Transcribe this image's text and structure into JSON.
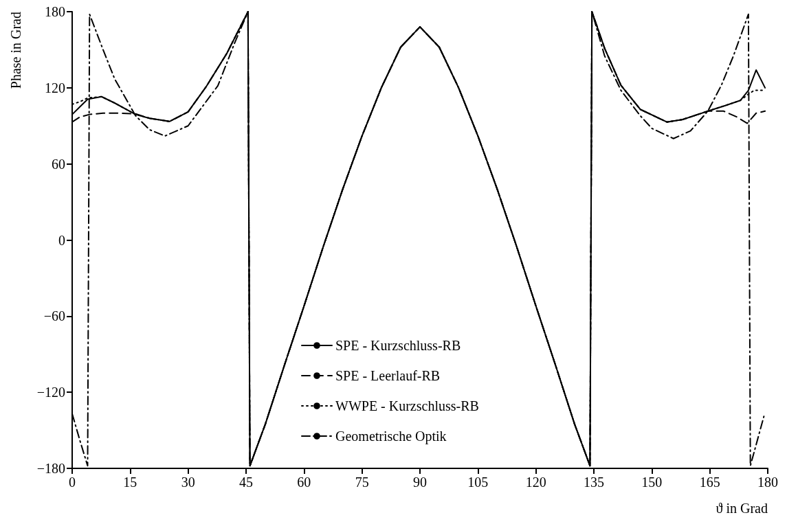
{
  "chart_data": {
    "type": "line",
    "xlabel": "ϑ in Grad",
    "ylabel": "Phase in Grad",
    "xlim": [
      0,
      180
    ],
    "ylim": [
      -180,
      180
    ],
    "xticks": [
      0,
      15,
      30,
      45,
      60,
      75,
      90,
      105,
      120,
      135,
      150,
      165,
      180
    ],
    "yticks": [
      {
        "value": -180,
        "label": "−180"
      },
      {
        "value": -120,
        "label": "−120"
      },
      {
        "value": -60,
        "label": "−60"
      },
      0,
      60,
      120,
      180
    ],
    "grid": false,
    "legend": "bottom",
    "series": [
      {
        "name": "SPE - Kurzschluss-RB",
        "color": "#000000",
        "line_style": "solid",
        "x": [
          0,
          2,
          4,
          7.6,
          11,
          16.4,
          20,
          25.2,
          30,
          34.7,
          40,
          43,
          45.5,
          46,
          50,
          55,
          60,
          65,
          70,
          75,
          80,
          85,
          90,
          95,
          100,
          105,
          110,
          115,
          120,
          125,
          130,
          134,
          134.5,
          137.8,
          142,
          147,
          153.9,
          158,
          164.5,
          169,
          172.9,
          175,
          177,
          179.3
        ],
        "values": [
          99,
          105,
          111,
          113,
          108,
          99,
          96,
          93.5,
          101,
          121,
          147,
          165,
          180,
          -178,
          -145,
          -98,
          -52,
          -5,
          40,
          82,
          120,
          152,
          168,
          152,
          120,
          82,
          40,
          -5,
          -52,
          -98,
          -145,
          -178,
          180,
          151,
          122,
          103,
          93,
          95,
          101.6,
          106,
          110,
          118,
          134,
          120
        ]
      },
      {
        "name": "SPE - Leerlauf-RB",
        "color": "#000000",
        "line_style": "dashed",
        "x": [
          0,
          2,
          4.5,
          8,
          12,
          16.4,
          20,
          25.2,
          30,
          34.7,
          40,
          43,
          45.5,
          46,
          50,
          55,
          60,
          65,
          70,
          75,
          80,
          85,
          90,
          95,
          100,
          105,
          110,
          115,
          120,
          125,
          130,
          134,
          134.5,
          137.8,
          142,
          147,
          153.9,
          158,
          164.5,
          168.6,
          172,
          174.7,
          177,
          179.3
        ],
        "values": [
          93,
          97,
          99,
          100,
          100,
          99.5,
          96,
          93.5,
          101,
          121,
          147,
          165,
          180,
          -178,
          -145,
          -98,
          -52,
          -5,
          40,
          82,
          120,
          152,
          168,
          152,
          120,
          82,
          40,
          -5,
          -52,
          -98,
          -145,
          -178,
          180,
          151,
          122,
          103,
          93,
          95,
          101.6,
          101.6,
          97,
          92,
          100,
          101.6
        ]
      },
      {
        "name": "WWPE - Kurzschluss-RB",
        "color": "#000000",
        "line_style": "dotted",
        "x": [
          0,
          2,
          4,
          7.6,
          11,
          16.4,
          20,
          25.2,
          30,
          34.7,
          40,
          43,
          45.5,
          46,
          50,
          55,
          60,
          65,
          70,
          75,
          80,
          85,
          90,
          95,
          100,
          105,
          110,
          115,
          120,
          125,
          130,
          134,
          134.5,
          137.8,
          142,
          147,
          153.9,
          158,
          164.5,
          169,
          172.9,
          175,
          176.5,
          179.3
        ],
        "values": [
          107,
          109,
          112,
          113,
          108,
          99,
          96,
          93.5,
          101,
          121,
          147,
          165,
          180,
          -178,
          -145,
          -98,
          -52,
          -5,
          40,
          82,
          120,
          152,
          168,
          152,
          120,
          82,
          40,
          -5,
          -52,
          -98,
          -145,
          -178,
          180,
          151,
          122,
          103,
          93,
          95,
          101.6,
          106,
          110,
          115,
          118,
          118
        ]
      },
      {
        "name": "Geometrische Optik",
        "color": "#000000",
        "line_style": "dashdot",
        "x": [
          0,
          2,
          4,
          4.5,
          8,
          11,
          16.4,
          20,
          24,
          30,
          37.7,
          42,
          45.5,
          46,
          50,
          55,
          60,
          65,
          70,
          75,
          80,
          85,
          90,
          95,
          100,
          105,
          110,
          115,
          120,
          125,
          130,
          134,
          134.5,
          137.8,
          142,
          147,
          150,
          155.6,
          160,
          164.5,
          168,
          171.1,
          175,
          175.5,
          179
        ],
        "values": [
          -137,
          -158,
          -178,
          178,
          150,
          127,
          98,
          87,
          82,
          90,
          121.6,
          155,
          180,
          -178,
          -145,
          -98,
          -52,
          -5,
          40,
          82,
          120,
          152,
          168,
          152,
          120,
          82,
          40,
          -5,
          -52,
          -98,
          -145,
          -178,
          180,
          145,
          118,
          98,
          88,
          80,
          86,
          101.6,
          122,
          145,
          178,
          -178,
          -139
        ]
      }
    ]
  }
}
